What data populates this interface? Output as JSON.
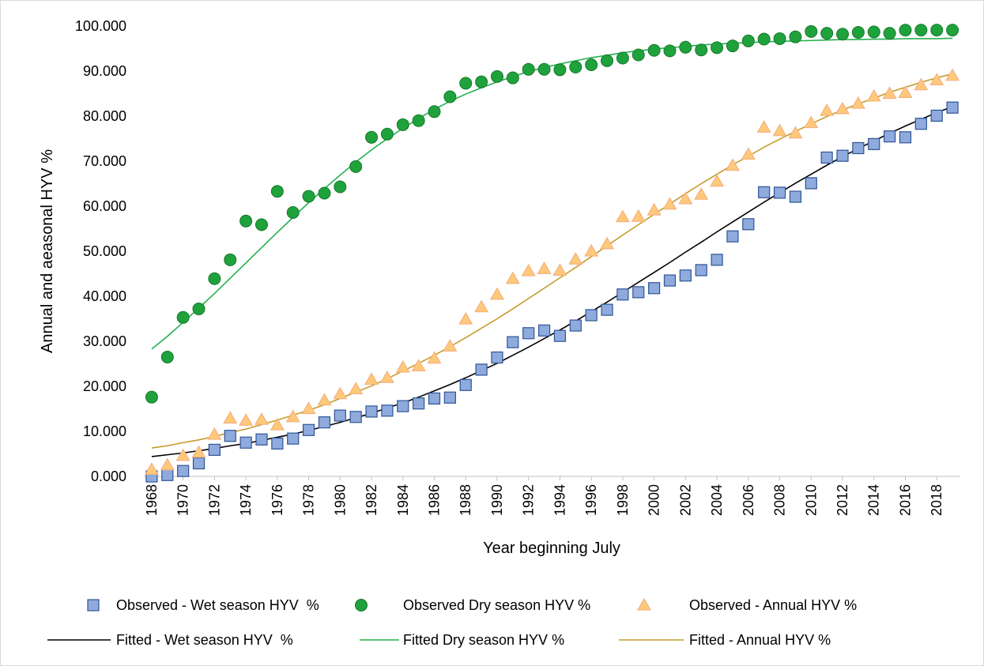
{
  "chart_data": {
    "type": "line",
    "xlabel": "Year beginning July",
    "ylabel": "Annual and aeasonal HYV %",
    "x": [
      1968,
      1969,
      1970,
      1971,
      1972,
      1973,
      1974,
      1975,
      1976,
      1977,
      1978,
      1979,
      1980,
      1981,
      1982,
      1983,
      1984,
      1985,
      1986,
      1987,
      1988,
      1989,
      1990,
      1991,
      1992,
      1993,
      1994,
      1995,
      1996,
      1997,
      1998,
      1999,
      2000,
      2001,
      2002,
      2003,
      2004,
      2005,
      2006,
      2007,
      2008,
      2009,
      2010,
      2011,
      2012,
      2013,
      2014,
      2015,
      2016,
      2017,
      2018,
      2019
    ],
    "xlim": [
      1967.5,
      2019.5
    ],
    "xticks": [
      1968,
      1970,
      1972,
      1974,
      1976,
      1978,
      1980,
      1982,
      1984,
      1986,
      1988,
      1990,
      1992,
      1994,
      1996,
      1998,
      2000,
      2002,
      2004,
      2006,
      2008,
      2010,
      2012,
      2014,
      2016,
      2018
    ],
    "ylim": [
      0,
      100
    ],
    "yticks": [
      {
        "value": 0,
        "label": "0.000"
      },
      {
        "value": 10,
        "label": "10.000"
      },
      {
        "value": 20,
        "label": "20.000"
      },
      {
        "value": 30,
        "label": "30.000"
      },
      {
        "value": 40,
        "label": "40.000"
      },
      {
        "value": 50,
        "label": "50.000"
      },
      {
        "value": 60,
        "label": "60.000"
      },
      {
        "value": 70,
        "label": "70.000"
      },
      {
        "value": 80,
        "label": "80.000"
      },
      {
        "value": 90,
        "label": "90.000"
      },
      {
        "value": 100,
        "label": "100.000"
      }
    ],
    "grid": false,
    "series": [
      {
        "name": "Observed - Wet season HYV  %",
        "marker": "square",
        "color": "#8faadc",
        "edge": "#2f5597",
        "values": [
          0.0,
          0.3,
          1.2,
          2.9,
          5.9,
          9.0,
          7.5,
          8.2,
          7.3,
          8.4,
          10.3,
          12.0,
          13.5,
          13.2,
          14.4,
          14.6,
          15.6,
          16.2,
          17.3,
          17.5,
          20.3,
          23.7,
          26.4,
          29.8,
          31.8,
          32.4,
          31.2,
          33.5,
          35.8,
          37.0,
          40.4,
          40.9,
          41.8,
          43.5,
          44.6,
          45.8,
          48.1,
          53.3,
          56.0,
          63.1,
          63.0,
          62.1,
          65.1,
          70.8,
          71.2,
          72.9,
          73.8,
          75.5,
          75.3,
          78.3,
          80.1,
          81.9
        ]
      },
      {
        "name": "Observed Dry season HYV %",
        "marker": "circle",
        "color": "#1fa23c",
        "edge": "#17782c",
        "values": [
          17.6,
          26.5,
          35.3,
          37.2,
          43.9,
          48.1,
          56.7,
          55.9,
          63.3,
          58.6,
          62.2,
          62.9,
          64.3,
          68.8,
          75.3,
          76.0,
          78.1,
          79.0,
          81.0,
          84.3,
          87.3,
          87.6,
          88.8,
          88.5,
          90.4,
          90.4,
          90.3,
          90.9,
          91.4,
          92.3,
          92.9,
          93.6,
          94.6,
          94.5,
          95.3,
          94.7,
          95.2,
          95.6,
          96.7,
          97.1,
          97.2,
          97.6,
          98.8,
          98.4,
          98.2,
          98.6,
          98.7,
          98.4,
          99.1,
          99.1,
          99.1,
          99.1
        ]
      },
      {
        "name": "Observed - Annual HYV %",
        "marker": "triangle",
        "color": "#ffc97a",
        "edge": "#f4b183",
        "values": [
          1.5,
          2.5,
          4.6,
          5.3,
          9.3,
          12.9,
          12.4,
          12.6,
          11.4,
          13.2,
          15.0,
          16.9,
          18.3,
          19.4,
          21.5,
          21.9,
          24.2,
          24.5,
          26.2,
          28.9,
          34.9,
          37.6,
          40.4,
          43.9,
          45.6,
          46.1,
          45.7,
          48.2,
          50.0,
          51.6,
          57.6,
          57.7,
          59.1,
          60.4,
          61.6,
          62.6,
          65.5,
          69.0,
          71.5,
          77.5,
          76.7,
          76.2,
          78.5,
          81.2,
          81.6,
          82.8,
          84.4,
          85.0,
          85.2,
          86.9,
          88.0,
          89.0
        ]
      },
      {
        "name": "Fitted - Wet season HYV  %",
        "marker": "none",
        "color": "#000000",
        "values": [
          4.4,
          4.8,
          5.2,
          5.7,
          6.2,
          6.8,
          7.3,
          8.0,
          8.7,
          9.4,
          10.2,
          11.1,
          12.0,
          13.0,
          14.0,
          15.2,
          16.3,
          17.6,
          19.0,
          20.4,
          21.9,
          23.5,
          25.1,
          26.9,
          28.7,
          30.6,
          32.5,
          34.5,
          36.6,
          38.7,
          40.9,
          43.1,
          45.3,
          47.5,
          49.8,
          52.0,
          54.3,
          56.5,
          58.7,
          60.9,
          63.0,
          65.1,
          67.1,
          69.1,
          71.0,
          72.8,
          74.5,
          76.2,
          77.8,
          79.3,
          80.8,
          82.1
        ]
      },
      {
        "name": "Fitted Dry season HYV %",
        "marker": "none",
        "color": "#22b14c",
        "values": [
          28.3,
          31.1,
          34.2,
          37.4,
          40.6,
          44.0,
          47.4,
          50.8,
          54.2,
          57.5,
          60.8,
          63.9,
          66.9,
          69.8,
          72.5,
          75.0,
          77.3,
          79.5,
          81.5,
          83.3,
          84.9,
          86.3,
          87.6,
          88.8,
          89.9,
          90.8,
          91.6,
          92.3,
          93.0,
          93.5,
          94.1,
          94.5,
          94.9,
          95.2,
          95.5,
          95.8,
          96.0,
          96.2,
          96.3,
          96.5,
          96.6,
          96.7,
          96.8,
          96.9,
          97.0,
          97.0,
          97.1,
          97.1,
          97.2,
          97.2,
          97.2,
          97.3
        ]
      },
      {
        "name": "Fitted - Annual HYV %",
        "marker": "none",
        "color": "#c59b2a",
        "values": [
          6.3,
          6.8,
          7.5,
          8.1,
          8.9,
          9.7,
          10.5,
          11.5,
          12.5,
          13.6,
          14.7,
          15.9,
          17.3,
          18.7,
          20.1,
          21.7,
          23.4,
          25.1,
          26.9,
          28.8,
          30.8,
          32.9,
          35.0,
          37.2,
          39.5,
          41.8,
          44.1,
          46.4,
          48.8,
          51.2,
          53.6,
          55.9,
          58.2,
          60.5,
          62.8,
          65.0,
          67.1,
          69.2,
          71.1,
          73.1,
          74.9,
          76.6,
          78.3,
          79.9,
          81.4,
          82.7,
          84.0,
          85.3,
          86.4,
          87.5,
          88.5,
          89.4
        ]
      }
    ]
  }
}
